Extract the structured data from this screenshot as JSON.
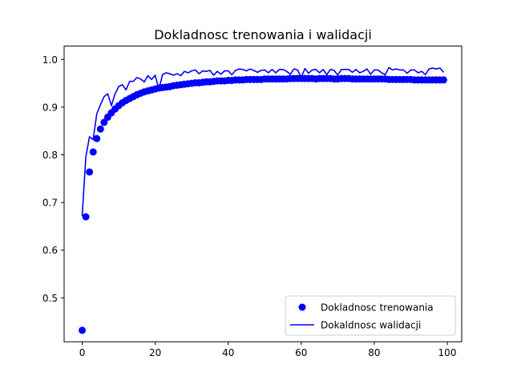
{
  "chart_data": {
    "type": "line",
    "title": "Dokladnosc trenowania i walidacji",
    "xlabel": "",
    "ylabel": "",
    "xlim": [
      -4.95,
      103.95
    ],
    "ylim": [
      0.408,
      1.028
    ],
    "x_ticks": [
      0,
      20,
      40,
      60,
      80,
      100
    ],
    "y_ticks": [
      0.5,
      0.6,
      0.7,
      0.8,
      0.9,
      1.0
    ],
    "x_tick_labels": [
      "0",
      "20",
      "40",
      "60",
      "80",
      "100"
    ],
    "y_tick_labels": [
      "0.5",
      "0.6",
      "0.7",
      "0.8",
      "0.9",
      "1.0"
    ],
    "grid": false,
    "legend_position": "lower-right",
    "series": [
      {
        "name": "Dokladnosc trenowania",
        "style": "markers",
        "color": "#0000ff",
        "x": [
          0,
          1,
          2,
          3,
          4,
          5,
          6,
          7,
          8,
          9,
          10,
          11,
          12,
          13,
          14,
          15,
          16,
          17,
          18,
          19,
          20,
          21,
          22,
          23,
          24,
          25,
          26,
          27,
          28,
          29,
          30,
          31,
          32,
          33,
          34,
          35,
          36,
          37,
          38,
          39,
          40,
          41,
          42,
          43,
          44,
          45,
          46,
          47,
          48,
          49,
          50,
          51,
          52,
          53,
          54,
          55,
          56,
          57,
          58,
          59,
          60,
          61,
          62,
          63,
          64,
          65,
          66,
          67,
          68,
          69,
          70,
          71,
          72,
          73,
          74,
          75,
          76,
          77,
          78,
          79,
          80,
          81,
          82,
          83,
          84,
          85,
          86,
          87,
          88,
          89,
          90,
          91,
          92,
          93,
          94,
          95,
          96,
          97,
          98,
          99
        ],
        "values": [
          0.432,
          0.67,
          0.764,
          0.806,
          0.834,
          0.854,
          0.868,
          0.879,
          0.888,
          0.896,
          0.903,
          0.909,
          0.914,
          0.918,
          0.922,
          0.926,
          0.929,
          0.932,
          0.934,
          0.936,
          0.938,
          0.94,
          0.941,
          0.942,
          0.943,
          0.945,
          0.946,
          0.947,
          0.948,
          0.949,
          0.95,
          0.951,
          0.951,
          0.952,
          0.953,
          0.953,
          0.954,
          0.955,
          0.955,
          0.955,
          0.956,
          0.956,
          0.957,
          0.957,
          0.957,
          0.958,
          0.958,
          0.958,
          0.958,
          0.958,
          0.959,
          0.959,
          0.959,
          0.959,
          0.959,
          0.959,
          0.959,
          0.96,
          0.96,
          0.96,
          0.96,
          0.96,
          0.96,
          0.96,
          0.959,
          0.96,
          0.96,
          0.96,
          0.96,
          0.959,
          0.959,
          0.96,
          0.96,
          0.96,
          0.959,
          0.959,
          0.959,
          0.959,
          0.959,
          0.959,
          0.959,
          0.959,
          0.959,
          0.959,
          0.958,
          0.958,
          0.958,
          0.958,
          0.958,
          0.958,
          0.958,
          0.957,
          0.957,
          0.957,
          0.957,
          0.957,
          0.957,
          0.957,
          0.957,
          0.957
        ]
      },
      {
        "name": "Dokaldnosc walidacji",
        "style": "line",
        "color": "#0000ff",
        "x": [
          0,
          1,
          2,
          3,
          4,
          5,
          6,
          7,
          8,
          9,
          10,
          11,
          12,
          13,
          14,
          15,
          16,
          17,
          18,
          19,
          20,
          21,
          22,
          23,
          24,
          25,
          26,
          27,
          28,
          29,
          30,
          31,
          32,
          33,
          34,
          35,
          36,
          37,
          38,
          39,
          40,
          41,
          42,
          43,
          44,
          45,
          46,
          47,
          48,
          49,
          50,
          51,
          52,
          53,
          54,
          55,
          56,
          57,
          58,
          59,
          60,
          61,
          62,
          63,
          64,
          65,
          66,
          67,
          68,
          69,
          70,
          71,
          72,
          73,
          74,
          75,
          76,
          77,
          78,
          79,
          80,
          81,
          82,
          83,
          84,
          85,
          86,
          87,
          88,
          89,
          90,
          91,
          92,
          93,
          94,
          95,
          96,
          97,
          98,
          99
        ],
        "values": [
          0.672,
          0.796,
          0.838,
          0.832,
          0.886,
          0.905,
          0.922,
          0.928,
          0.903,
          0.928,
          0.943,
          0.947,
          0.936,
          0.954,
          0.954,
          0.962,
          0.959,
          0.953,
          0.966,
          0.958,
          0.967,
          0.937,
          0.968,
          0.972,
          0.97,
          0.967,
          0.97,
          0.966,
          0.975,
          0.972,
          0.976,
          0.978,
          0.97,
          0.976,
          0.975,
          0.977,
          0.967,
          0.975,
          0.969,
          0.976,
          0.976,
          0.968,
          0.977,
          0.98,
          0.979,
          0.976,
          0.98,
          0.977,
          0.973,
          0.977,
          0.978,
          0.972,
          0.979,
          0.972,
          0.979,
          0.979,
          0.975,
          0.969,
          0.98,
          0.978,
          0.962,
          0.981,
          0.971,
          0.978,
          0.979,
          0.972,
          0.979,
          0.968,
          0.979,
          0.977,
          0.967,
          0.979,
          0.979,
          0.979,
          0.973,
          0.979,
          0.972,
          0.975,
          0.98,
          0.969,
          0.978,
          0.978,
          0.972,
          0.968,
          0.983,
          0.978,
          0.98,
          0.978,
          0.978,
          0.971,
          0.978,
          0.978,
          0.972,
          0.975,
          0.968,
          0.98,
          0.982,
          0.98,
          0.982,
          0.973
        ]
      }
    ]
  }
}
